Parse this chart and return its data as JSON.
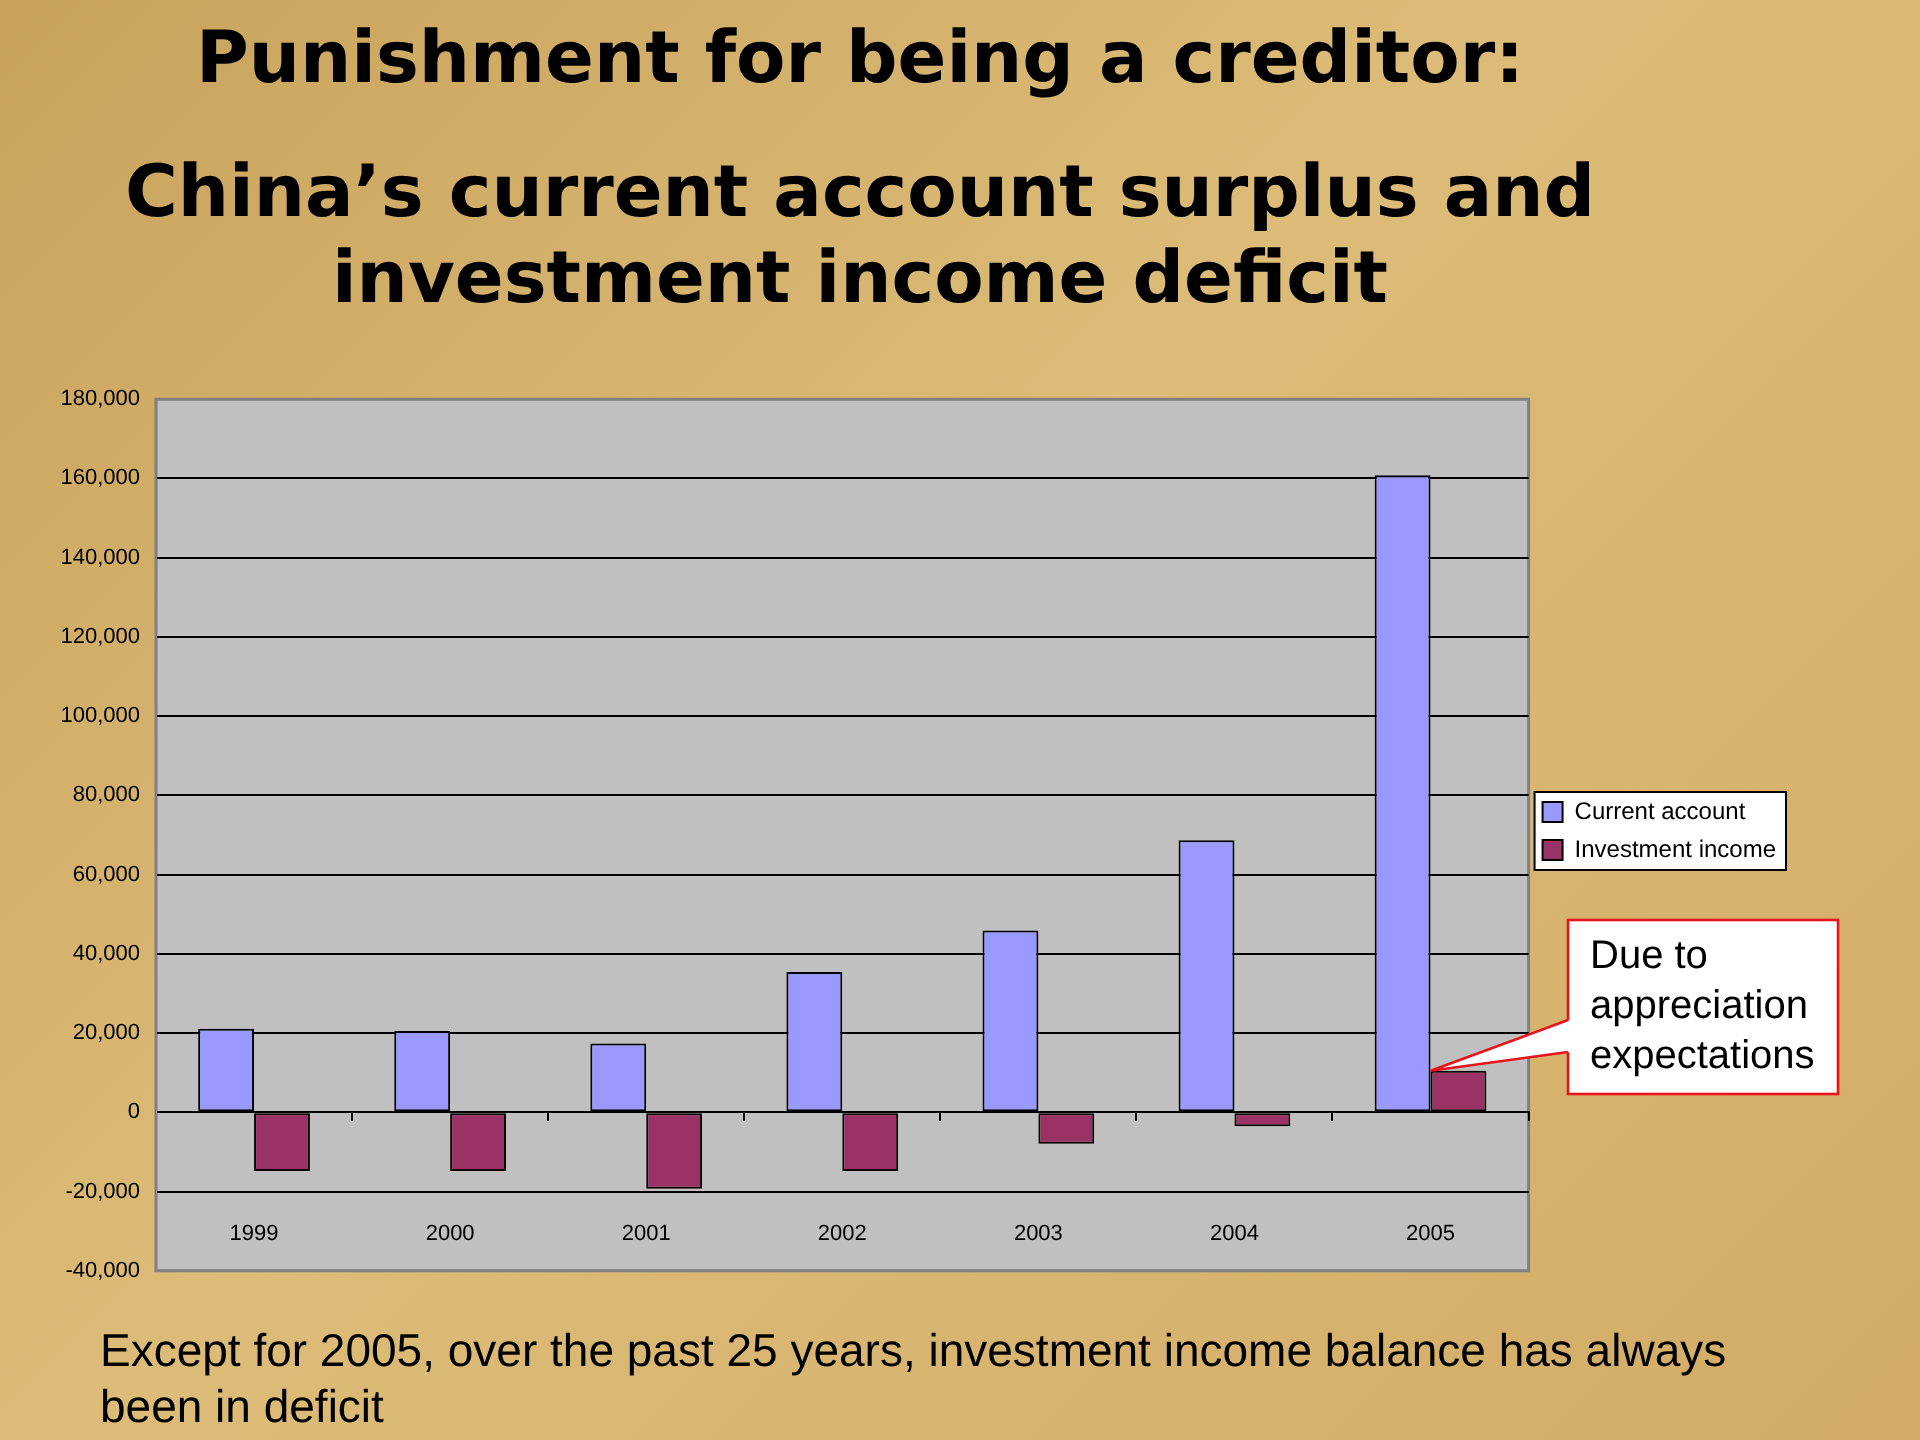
{
  "chart_data": {
    "type": "bar",
    "title": "Punishment for being a creditor:",
    "subtitle": "China’s current account surplus and investment income deficit",
    "categories": [
      "1999",
      "2000",
      "2001",
      "2002",
      "2003",
      "2004",
      "2005"
    ],
    "series": [
      {
        "name": "Current account",
        "color": "#9999ff",
        "values": [
          21100,
          20500,
          17400,
          35400,
          45900,
          68700,
          160800
        ]
      },
      {
        "name": "Investment income",
        "color": "#993366",
        "values": [
          -14800,
          -14800,
          -19300,
          -14800,
          -7900,
          -3500,
          10500
        ]
      }
    ],
    "ylim": [
      -40000,
      180000
    ],
    "yticks": [
      {
        "value": -40000,
        "label": "-40,000"
      },
      {
        "value": -20000,
        "label": "-20,000"
      },
      0,
      {
        "value": 20000,
        "label": "20,000"
      },
      {
        "value": 40000,
        "label": "40,000"
      },
      {
        "value": 60000,
        "label": "60,000"
      },
      {
        "value": 80000,
        "label": "80,000"
      },
      {
        "value": 100000,
        "label": "100,000"
      },
      {
        "value": 120000,
        "label": "120,000"
      },
      {
        "value": 140000,
        "label": "140,000"
      },
      {
        "value": 160000,
        "label": "160,000"
      },
      {
        "value": 180000,
        "label": "180,000"
      }
    ],
    "grid": "y",
    "legend": "right",
    "annotations": [
      {
        "text": "Due to appreciation expectations",
        "x": "2005",
        "y": 10500
      },
      "Except for 2005, over the past 25 years, investment income balance has always been in deficit"
    ]
  }
}
